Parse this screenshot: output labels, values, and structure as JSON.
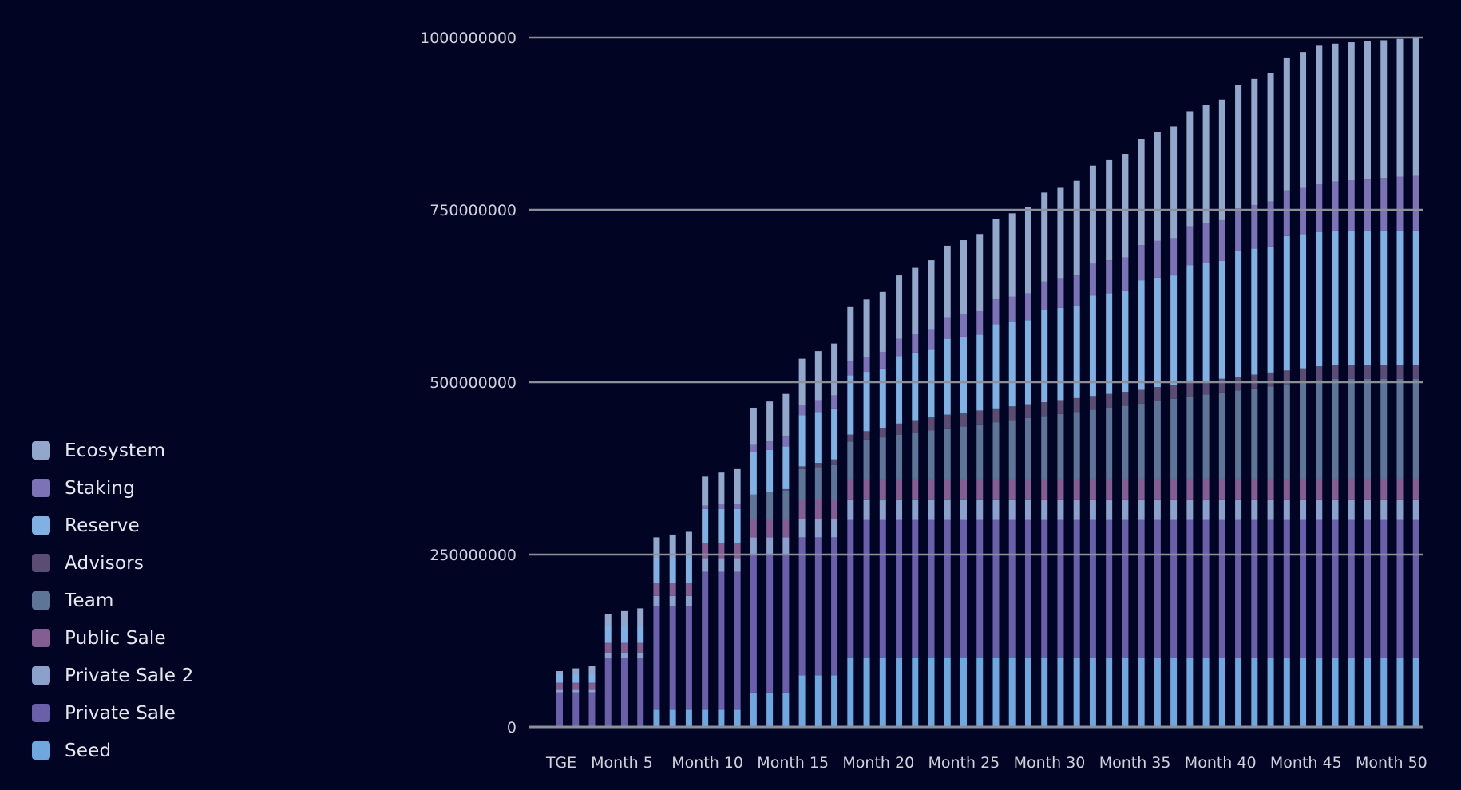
{
  "chart_data": {
    "type": "bar",
    "stacked": true,
    "title": "",
    "xlabel": "",
    "ylabel": "",
    "ylim": [
      0,
      1000000000
    ],
    "y_ticks": [
      "0",
      "250000000",
      "500000000",
      "750000000",
      "1000000000"
    ],
    "x_ticks": [
      "TGE",
      "Month 5",
      "Month 10",
      "Month 15",
      "Month 20",
      "Month 25",
      "Month 30",
      "Month 35",
      "Month 40",
      "Month 45",
      "Month 50"
    ],
    "grid": "horizontal",
    "legend_position": "left-bottom",
    "background": "#020424",
    "gridline_color": "#8b8f99",
    "series": [
      {
        "name": "Ecosystem",
        "color": "#93a7cb",
        "values": [
          4000000,
          8000000,
          12000000,
          17000000,
          21000000,
          25000000,
          29000000,
          33000000,
          37000000,
          42000000,
          46000000,
          50000000,
          54000000,
          58000000,
          62000000,
          67000000,
          71000000,
          75000000,
          79000000,
          83000000,
          87000000,
          92000000,
          96000000,
          100000000,
          104000000,
          108000000,
          112000000,
          117000000,
          121000000,
          125000000,
          129000000,
          133000000,
          137000000,
          142000000,
          146000000,
          150000000,
          154000000,
          158000000,
          162000000,
          167000000,
          171000000,
          175000000,
          179000000,
          183000000,
          187000000,
          192000000,
          196000000,
          200000000,
          200000000,
          200000000,
          200000000,
          200000000,
          200000000,
          200000000
        ]
      },
      {
        "name": "Staking",
        "color": "#7b73b5",
        "values": [
          0,
          0,
          0,
          0,
          0,
          0,
          0,
          0,
          0,
          5000000,
          7000000,
          8000000,
          10000000,
          12000000,
          14000000,
          15000000,
          17000000,
          19000000,
          20000000,
          22000000,
          24000000,
          25000000,
          27000000,
          29000000,
          31000000,
          32000000,
          34000000,
          36000000,
          37000000,
          39000000,
          41000000,
          42000000,
          44000000,
          46000000,
          48000000,
          49000000,
          51000000,
          53000000,
          54000000,
          56000000,
          58000000,
          59000000,
          61000000,
          63000000,
          65000000,
          66000000,
          68000000,
          70000000,
          71000000,
          73000000,
          75000000,
          76000000,
          78000000,
          80000000
        ]
      },
      {
        "name": "Reserve",
        "color": "#80b1e2",
        "values": [
          13000000,
          13000000,
          13000000,
          25000000,
          25000000,
          25000000,
          37000000,
          37000000,
          37000000,
          49000000,
          49000000,
          49000000,
          62000000,
          62000000,
          62000000,
          74000000,
          74000000,
          74000000,
          86000000,
          86000000,
          86000000,
          98000000,
          98000000,
          98000000,
          110000000,
          110000000,
          110000000,
          122000000,
          122000000,
          122000000,
          134000000,
          134000000,
          134000000,
          146000000,
          146000000,
          146000000,
          159000000,
          159000000,
          159000000,
          171000000,
          171000000,
          171000000,
          183000000,
          183000000,
          183000000,
          195000000,
          195000000,
          195000000,
          195000000,
          195000000,
          195000000,
          195000000,
          195000000,
          195000000
        ]
      },
      {
        "name": "Advisors",
        "color": "#5b4c74",
        "values": [
          0,
          0,
          0,
          0,
          0,
          0,
          0,
          0,
          0,
          0,
          0,
          0,
          0,
          0,
          2000000,
          4000000,
          6000000,
          8000000,
          10000000,
          12000000,
          14000000,
          16000000,
          18000000,
          20000000,
          20000000,
          20000000,
          20000000,
          20000000,
          20000000,
          20000000,
          20000000,
          20000000,
          20000000,
          20000000,
          20000000,
          20000000,
          20000000,
          20000000,
          20000000,
          20000000,
          20000000,
          20000000,
          20000000,
          20000000,
          20000000,
          20000000,
          20000000,
          20000000,
          20000000,
          20000000,
          20000000,
          20000000,
          20000000,
          20000000
        ]
      },
      {
        "name": "Team",
        "color": "#5f7597",
        "values": [
          0,
          0,
          0,
          0,
          0,
          0,
          0,
          0,
          0,
          0,
          0,
          0,
          36000000,
          39000000,
          42000000,
          45000000,
          48000000,
          51000000,
          54000000,
          57000000,
          60000000,
          64000000,
          67000000,
          70000000,
          73000000,
          76000000,
          79000000,
          82000000,
          85000000,
          88000000,
          91000000,
          94000000,
          97000000,
          100000000,
          103000000,
          106000000,
          109000000,
          113000000,
          116000000,
          119000000,
          122000000,
          125000000,
          128000000,
          131000000,
          134000000,
          137000000,
          140000000,
          143000000,
          145000000,
          145000000,
          145000000,
          145000000,
          145000000,
          145000000
        ]
      },
      {
        "name": "Public Sale",
        "color": "#835e92",
        "values": [
          10000000,
          10000000,
          10000000,
          14000000,
          14000000,
          14000000,
          19000000,
          19000000,
          19000000,
          22000000,
          22000000,
          22000000,
          26000000,
          26000000,
          26000000,
          27000000,
          27000000,
          27000000,
          30000000,
          30000000,
          30000000,
          30000000,
          30000000,
          30000000,
          30000000,
          30000000,
          30000000,
          30000000,
          30000000,
          30000000,
          30000000,
          30000000,
          30000000,
          30000000,
          30000000,
          30000000,
          30000000,
          30000000,
          30000000,
          30000000,
          30000000,
          30000000,
          30000000,
          30000000,
          30000000,
          30000000,
          30000000,
          30000000,
          30000000,
          30000000,
          30000000,
          30000000,
          30000000,
          30000000
        ]
      },
      {
        "name": "Private Sale 2",
        "color": "#8ba1cb",
        "values": [
          4000000,
          4000000,
          4000000,
          8000000,
          8000000,
          8000000,
          15000000,
          15000000,
          15000000,
          20000000,
          20000000,
          20000000,
          25000000,
          25000000,
          25000000,
          27000000,
          27000000,
          27000000,
          30000000,
          30000000,
          30000000,
          30000000,
          30000000,
          30000000,
          30000000,
          30000000,
          30000000,
          30000000,
          30000000,
          30000000,
          30000000,
          30000000,
          30000000,
          30000000,
          30000000,
          30000000,
          30000000,
          30000000,
          30000000,
          30000000,
          30000000,
          30000000,
          30000000,
          30000000,
          30000000,
          30000000,
          30000000,
          30000000,
          30000000,
          30000000,
          30000000,
          30000000,
          30000000,
          30000000
        ]
      },
      {
        "name": "Private Sale",
        "color": "#6a5fa9",
        "values": [
          50000000,
          50000000,
          50000000,
          100000000,
          100000000,
          100000000,
          150000000,
          150000000,
          150000000,
          200000000,
          200000000,
          200000000,
          200000000,
          200000000,
          200000000,
          200000000,
          200000000,
          200000000,
          200000000,
          200000000,
          200000000,
          200000000,
          200000000,
          200000000,
          200000000,
          200000000,
          200000000,
          200000000,
          200000000,
          200000000,
          200000000,
          200000000,
          200000000,
          200000000,
          200000000,
          200000000,
          200000000,
          200000000,
          200000000,
          200000000,
          200000000,
          200000000,
          200000000,
          200000000,
          200000000,
          200000000,
          200000000,
          200000000,
          200000000,
          200000000,
          200000000,
          200000000,
          200000000,
          200000000
        ]
      },
      {
        "name": "Seed",
        "color": "#6fa7de",
        "values": [
          0,
          0,
          0,
          0,
          0,
          0,
          25000000,
          25000000,
          25000000,
          25000000,
          25000000,
          25000000,
          50000000,
          50000000,
          50000000,
          75000000,
          75000000,
          75000000,
          100000000,
          100000000,
          100000000,
          100000000,
          100000000,
          100000000,
          100000000,
          100000000,
          100000000,
          100000000,
          100000000,
          100000000,
          100000000,
          100000000,
          100000000,
          100000000,
          100000000,
          100000000,
          100000000,
          100000000,
          100000000,
          100000000,
          100000000,
          100000000,
          100000000,
          100000000,
          100000000,
          100000000,
          100000000,
          100000000,
          100000000,
          100000000,
          100000000,
          100000000,
          100000000,
          100000000
        ]
      }
    ]
  }
}
